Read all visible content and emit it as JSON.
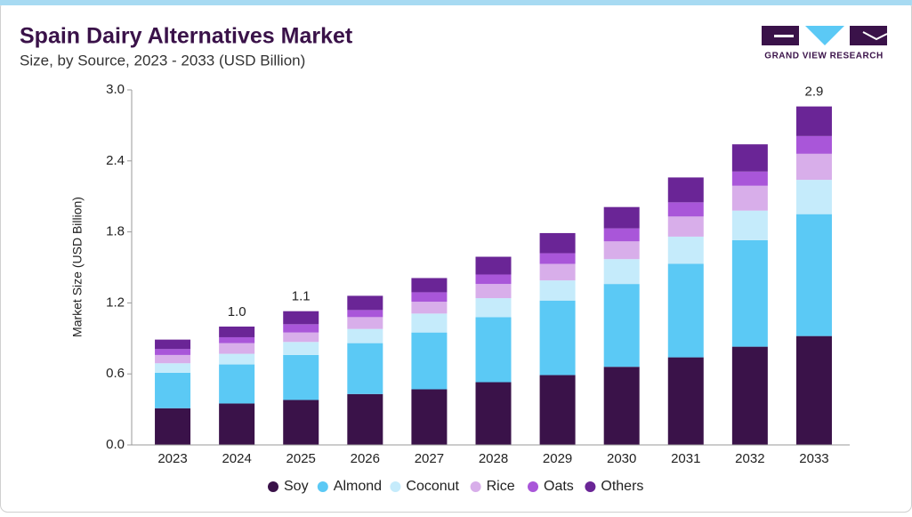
{
  "chart_data": {
    "type": "stacked_bar",
    "title": "Spain Dairy Alternatives Market",
    "subtitle": "Size, by Source, 2023 - 2033 (USD Billion)",
    "brand": "GRAND VIEW RESEARCH",
    "y_label": "Market Size (USD Billion)",
    "categories": [
      "2023",
      "2024",
      "2025",
      "2026",
      "2027",
      "2028",
      "2029",
      "2030",
      "2031",
      "2032",
      "2033"
    ],
    "series": [
      {
        "name": "Soy",
        "color": "#3a1249",
        "values": [
          0.31,
          0.35,
          0.38,
          0.43,
          0.47,
          0.53,
          0.59,
          0.66,
          0.74,
          0.83,
          0.92
        ]
      },
      {
        "name": "Almond",
        "color": "#5bc9f5",
        "values": [
          0.3,
          0.33,
          0.38,
          0.43,
          0.48,
          0.55,
          0.63,
          0.7,
          0.79,
          0.9,
          1.03
        ]
      },
      {
        "name": "Coconut",
        "color": "#c5ebfb",
        "values": [
          0.08,
          0.09,
          0.11,
          0.12,
          0.16,
          0.16,
          0.17,
          0.21,
          0.23,
          0.25,
          0.29
        ]
      },
      {
        "name": "Rice",
        "color": "#d8aeea",
        "values": [
          0.07,
          0.09,
          0.08,
          0.1,
          0.1,
          0.12,
          0.14,
          0.15,
          0.17,
          0.21,
          0.22
        ]
      },
      {
        "name": "Oats",
        "color": "#a956d9",
        "values": [
          0.05,
          0.05,
          0.07,
          0.06,
          0.08,
          0.08,
          0.09,
          0.11,
          0.12,
          0.12,
          0.15
        ]
      },
      {
        "name": "Others",
        "color": "#6a2596",
        "values": [
          0.08,
          0.09,
          0.11,
          0.12,
          0.12,
          0.15,
          0.17,
          0.18,
          0.21,
          0.23,
          0.25
        ]
      }
    ],
    "total_labels": [
      null,
      "1.0",
      "1.1",
      null,
      null,
      null,
      null,
      null,
      null,
      null,
      "2.9"
    ],
    "ylim": [
      0,
      3.0
    ],
    "yticks": [
      {
        "value": 0,
        "label": "0.0"
      },
      0.6,
      1.2,
      1.8,
      2.4,
      {
        "value": 3.0,
        "label": "3.0"
      }
    ],
    "legend": "bottom"
  }
}
